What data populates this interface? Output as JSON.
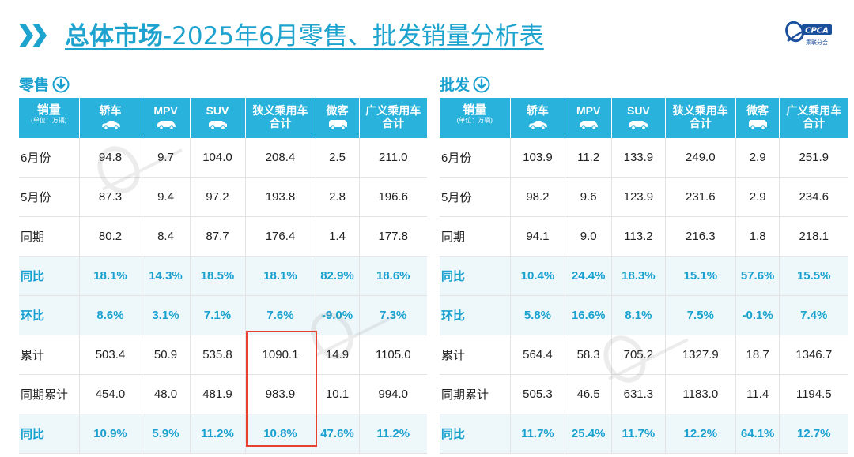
{
  "title": {
    "bold": "总体市场",
    "rest": "-2025年6月零售、批发销量分析表"
  },
  "logo": {
    "text": "CPCA",
    "sub": "乘联分会"
  },
  "colors": {
    "accent": "#29b2dc",
    "text_accent": "#1aa1cf",
    "highlight": "#e8402e"
  },
  "retail": {
    "label": "零售",
    "icon": "down-arrow-circle-icon",
    "corner": {
      "label": "销量",
      "unit": "(单位：万辆)"
    },
    "columns": [
      {
        "label": "轿车",
        "icon": "sedan-icon"
      },
      {
        "label": "MPV",
        "icon": "mpv-icon"
      },
      {
        "label": "SUV",
        "icon": "suv-icon"
      },
      {
        "label": "狭义乘用车\n合计",
        "icon": ""
      },
      {
        "label": "微客",
        "icon": "minivan-icon"
      },
      {
        "label": "广义乘用车\n合计",
        "icon": ""
      }
    ],
    "rows": [
      {
        "label": "6月份",
        "values": [
          "94.8",
          "9.7",
          "104.0",
          "208.4",
          "2.5",
          "211.0"
        ],
        "pct": false
      },
      {
        "label": "5月份",
        "values": [
          "87.3",
          "9.4",
          "97.2",
          "193.8",
          "2.8",
          "196.6"
        ],
        "pct": false
      },
      {
        "label": "同期",
        "values": [
          "80.2",
          "8.4",
          "87.7",
          "176.4",
          "1.4",
          "177.8"
        ],
        "pct": false
      },
      {
        "label": "同比",
        "values": [
          "18.1%",
          "14.3%",
          "18.5%",
          "18.1%",
          "82.9%",
          "18.6%"
        ],
        "pct": true
      },
      {
        "label": "环比",
        "values": [
          "8.6%",
          "3.1%",
          "7.1%",
          "7.6%",
          "-9.0%",
          "7.3%"
        ],
        "pct": true
      },
      {
        "label": "累计",
        "values": [
          "503.4",
          "50.9",
          "535.8",
          "1090.1",
          "14.9",
          "1105.0"
        ],
        "pct": false
      },
      {
        "label": "同期累计",
        "values": [
          "454.0",
          "48.0",
          "481.9",
          "983.9",
          "10.1",
          "994.0"
        ],
        "pct": false
      },
      {
        "label": "同比",
        "values": [
          "10.9%",
          "5.9%",
          "11.2%",
          "10.8%",
          "47.6%",
          "11.2%"
        ],
        "pct": true
      }
    ]
  },
  "wholesale": {
    "label": "批发",
    "icon": "down-arrow-circle-icon",
    "corner": {
      "label": "销量",
      "unit": "(单位：万辆)"
    },
    "columns": [
      {
        "label": "轿车",
        "icon": "sedan-icon"
      },
      {
        "label": "MPV",
        "icon": "mpv-icon"
      },
      {
        "label": "SUV",
        "icon": "suv-icon"
      },
      {
        "label": "狭义乘用车\n合计",
        "icon": ""
      },
      {
        "label": "微客",
        "icon": "minivan-icon"
      },
      {
        "label": "广义乘用车\n合计",
        "icon": ""
      }
    ],
    "rows": [
      {
        "label": "6月份",
        "values": [
          "103.9",
          "11.2",
          "133.9",
          "249.0",
          "2.9",
          "251.9"
        ],
        "pct": false
      },
      {
        "label": "5月份",
        "values": [
          "98.2",
          "9.6",
          "123.9",
          "231.6",
          "2.9",
          "234.6"
        ],
        "pct": false
      },
      {
        "label": "同期",
        "values": [
          "94.1",
          "9.0",
          "113.2",
          "216.3",
          "1.8",
          "218.1"
        ],
        "pct": false
      },
      {
        "label": "同比",
        "values": [
          "10.4%",
          "24.4%",
          "18.3%",
          "15.1%",
          "57.6%",
          "15.5%"
        ],
        "pct": true
      },
      {
        "label": "环比",
        "values": [
          "5.8%",
          "16.6%",
          "8.1%",
          "7.5%",
          "-0.1%",
          "7.4%"
        ],
        "pct": true
      },
      {
        "label": "累计",
        "values": [
          "564.4",
          "58.3",
          "705.2",
          "1327.9",
          "18.7",
          "1346.7"
        ],
        "pct": false
      },
      {
        "label": "同期累计",
        "values": [
          "505.3",
          "46.5",
          "631.3",
          "1183.0",
          "11.4",
          "1194.5"
        ],
        "pct": false
      },
      {
        "label": "同比",
        "values": [
          "11.7%",
          "25.4%",
          "11.7%",
          "12.2%",
          "64.1%",
          "12.7%"
        ],
        "pct": true
      }
    ]
  }
}
